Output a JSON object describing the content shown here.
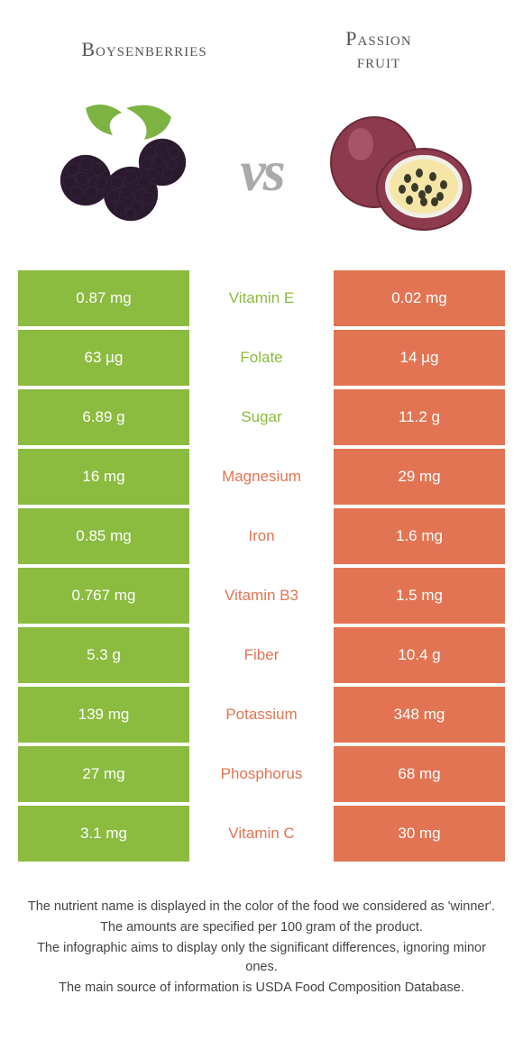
{
  "colors": {
    "left": "#8bbb3f",
    "right": "#e37453",
    "left_text": "#8bbb3f",
    "right_text": "#e37453"
  },
  "header": {
    "left_title": "Boysenberries",
    "right_title_line1": "Passion",
    "right_title_line2": "fruit"
  },
  "vs_label": "vs",
  "rows": [
    {
      "left": "0.87 mg",
      "label": "Vitamin E",
      "right": "0.02 mg",
      "winner": "left"
    },
    {
      "left": "63 µg",
      "label": "Folate",
      "right": "14 µg",
      "winner": "left"
    },
    {
      "left": "6.89 g",
      "label": "Sugar",
      "right": "11.2 g",
      "winner": "left"
    },
    {
      "left": "16 mg",
      "label": "Magnesium",
      "right": "29 mg",
      "winner": "right"
    },
    {
      "left": "0.85 mg",
      "label": "Iron",
      "right": "1.6 mg",
      "winner": "right"
    },
    {
      "left": "0.767 mg",
      "label": "Vitamin B3",
      "right": "1.5 mg",
      "winner": "right"
    },
    {
      "left": "5.3 g",
      "label": "Fiber",
      "right": "10.4 g",
      "winner": "right"
    },
    {
      "left": "139 mg",
      "label": "Potassium",
      "right": "348 mg",
      "winner": "right"
    },
    {
      "left": "27 mg",
      "label": "Phosphorus",
      "right": "68 mg",
      "winner": "right"
    },
    {
      "left": "3.1 mg",
      "label": "Vitamin C",
      "right": "30 mg",
      "winner": "right"
    }
  ],
  "footnotes": [
    "The nutrient name is displayed in the color of the food we considered as 'winner'.",
    "The amounts are specified per 100 gram of the product.",
    "The infographic aims to display only the significant differences, ignoring minor ones.",
    "The main source of information is USDA Food Composition Database."
  ]
}
